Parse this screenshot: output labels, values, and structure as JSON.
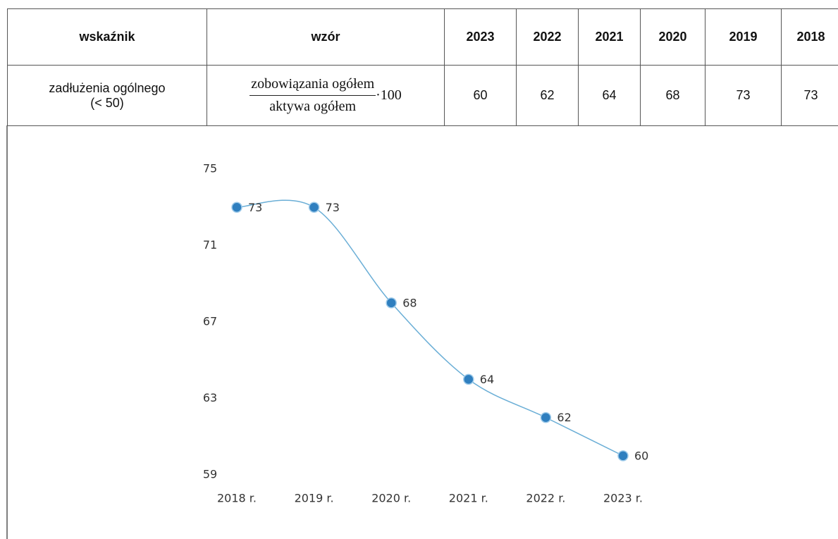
{
  "table": {
    "header": [
      "wskaźnik",
      "wzór",
      "2023",
      "2022",
      "2021",
      "2020",
      "2019",
      "2018"
    ],
    "rows": [
      {
        "label": [
          "zadłużenia ogólnego",
          "(< 50)"
        ],
        "formula": {
          "numerator": "zobowiązania  ogółem",
          "denominator": "aktywa ogółem",
          "multiplier": "·100"
        },
        "values": [
          60,
          62,
          64,
          68,
          73,
          73
        ]
      }
    ]
  },
  "chart_data": {
    "type": "line",
    "categories": [
      "2018 r.",
      "2019 r.",
      "2020 r.",
      "2021 r.",
      "2022 r.",
      "2023 r."
    ],
    "values": [
      73,
      73,
      68,
      64,
      62,
      60
    ],
    "color": "#6aaed6",
    "marker_color": "#2f7fbf",
    "ylim": [
      59,
      75
    ],
    "yticks": [
      59,
      63,
      67,
      71,
      75
    ],
    "smooth": true
  }
}
